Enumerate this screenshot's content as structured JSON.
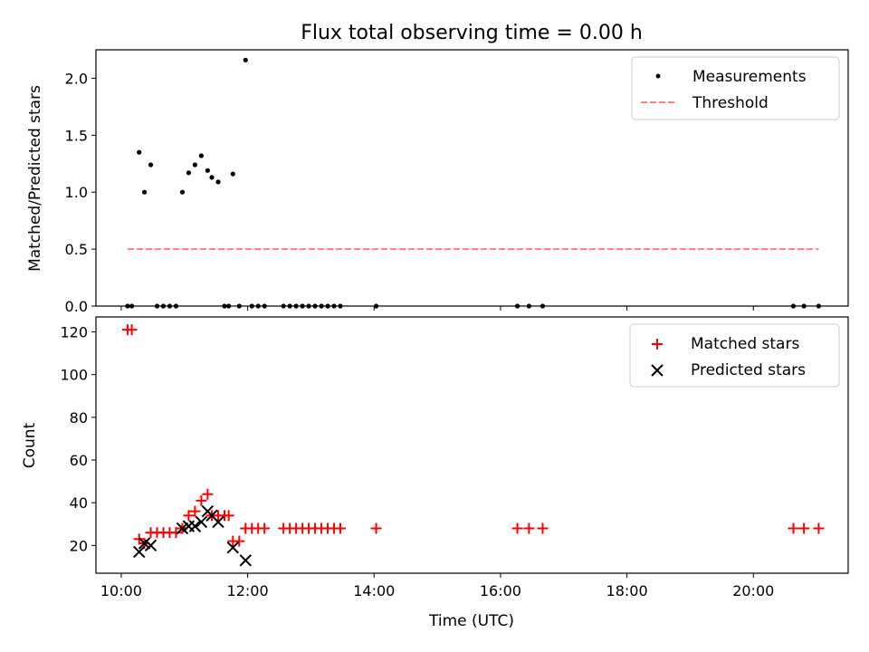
{
  "chart_data": [
    {
      "type": "scatter",
      "title": "Flux total observing time = 0.00 h",
      "xlabel": "",
      "ylabel": "Matched/Predicted stars",
      "xlim_hours": [
        9.6,
        21.5
      ],
      "ylim": [
        0,
        2.25
      ],
      "yticks": [
        "0.0",
        "0.5",
        "1.0",
        "1.5",
        "2.0"
      ],
      "legend_position": "top-right",
      "colors": {
        "measurements": "#000000",
        "threshold": "#ff7f7f"
      },
      "series": [
        {
          "name": "Measurements",
          "kind": "points",
          "x": [
            "10:06",
            "10:10",
            "10:17",
            "10:22",
            "10:28",
            "10:34",
            "10:40",
            "10:46",
            "10:52",
            "10:58",
            "11:04",
            "11:10",
            "11:16",
            "11:22",
            "11:26",
            "11:32",
            "11:38",
            "11:42",
            "11:46",
            "11:52",
            "11:58",
            "12:04",
            "12:10",
            "12:16",
            "12:34",
            "12:40",
            "12:46",
            "12:52",
            "12:58",
            "13:04",
            "13:10",
            "13:16",
            "13:22",
            "13:28",
            "14:02",
            "16:16",
            "16:27",
            "16:40",
            "20:38",
            "20:48",
            "21:02"
          ],
          "y": [
            0,
            0,
            1.35,
            1.0,
            1.24,
            0,
            0,
            0,
            0,
            1.0,
            1.17,
            1.24,
            1.32,
            1.19,
            1.13,
            1.09,
            0,
            0,
            1.16,
            0,
            2.16,
            0,
            0,
            0,
            0,
            0,
            0,
            0,
            0,
            0,
            0,
            0,
            0,
            0,
            0,
            0,
            0,
            0,
            0,
            0,
            0
          ]
        },
        {
          "name": "Threshold",
          "kind": "dashed-line",
          "x": [
            "10:06",
            "21:02"
          ],
          "y": [
            0.5,
            0.5
          ]
        }
      ]
    },
    {
      "type": "scatter",
      "title": "",
      "xlabel": "Time (UTC)",
      "ylabel": "Count",
      "xlim_hours": [
        9.6,
        21.5
      ],
      "ylim": [
        7,
        127
      ],
      "yticks": [
        "20",
        "40",
        "60",
        "80",
        "100",
        "120"
      ],
      "xticks": [
        "10:00",
        "12:00",
        "14:00",
        "16:00",
        "18:00",
        "20:00"
      ],
      "legend_position": "top-right",
      "colors": {
        "matched": "#ff0000",
        "predicted": "#000000"
      },
      "series": [
        {
          "name": "Matched stars",
          "marker": "plus",
          "x": [
            "10:06",
            "10:10",
            "10:17",
            "10:22",
            "10:28",
            "10:34",
            "10:40",
            "10:46",
            "10:52",
            "10:58",
            "11:04",
            "11:10",
            "11:16",
            "11:22",
            "11:26",
            "11:32",
            "11:38",
            "11:42",
            "11:46",
            "11:52",
            "11:58",
            "12:04",
            "12:10",
            "12:16",
            "12:34",
            "12:40",
            "12:46",
            "12:52",
            "12:58",
            "13:04",
            "13:10",
            "13:16",
            "13:22",
            "13:28",
            "14:02",
            "16:16",
            "16:27",
            "16:40",
            "20:38",
            "20:48",
            "21:02"
          ],
          "y": [
            121,
            121,
            23,
            21,
            26,
            26,
            26,
            26,
            26,
            28,
            34,
            36,
            41,
            44,
            34,
            34,
            34,
            34,
            22,
            22,
            28,
            28,
            28,
            28,
            28,
            28,
            28,
            28,
            28,
            28,
            28,
            28,
            28,
            28,
            28,
            28,
            28,
            28,
            28,
            28,
            28
          ]
        },
        {
          "name": "Predicted stars",
          "marker": "x",
          "x": [
            "10:17",
            "10:22",
            "10:28",
            "10:58",
            "11:04",
            "11:10",
            "11:16",
            "11:22",
            "11:26",
            "11:32",
            "11:46",
            "11:58"
          ],
          "y": [
            17,
            21,
            20,
            28,
            29,
            29,
            31,
            36,
            34,
            31,
            19,
            13
          ]
        }
      ]
    }
  ]
}
